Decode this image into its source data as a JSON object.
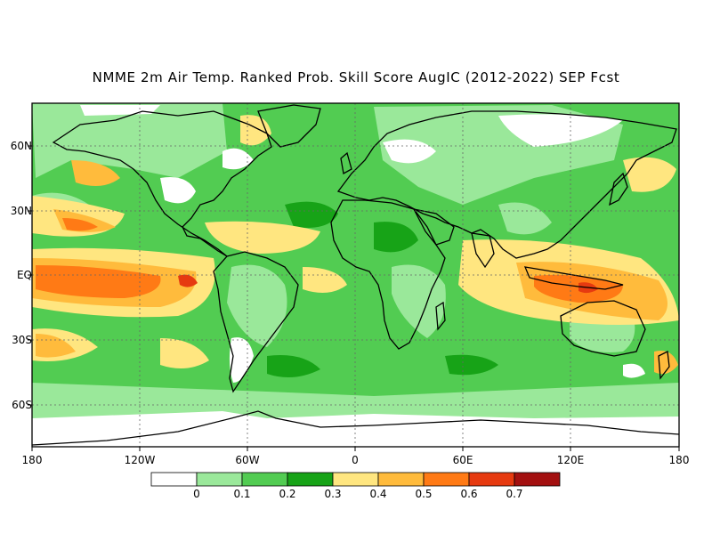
{
  "title": "NMME 2m Air Temp. Ranked Prob. Skill Score AugIC (2012-2022) SEP Fcst",
  "axes": {
    "lat_ticks": [
      "60N",
      "30N",
      "EQ",
      "30S",
      "60S"
    ],
    "lon_ticks": [
      "180",
      "120W",
      "60W",
      "0",
      "60E",
      "120E",
      "180"
    ]
  },
  "legend": {
    "labels": [
      "0",
      "0.1",
      "0.2",
      "0.3",
      "0.4",
      "0.5",
      "0.6",
      "0.7"
    ],
    "colors": [
      "#ffffff",
      "#9ae89a",
      "#52cc52",
      "#17a317",
      "#ffe680",
      "#ffbb3c",
      "#ff7a15",
      "#e63a10",
      "#a31010"
    ]
  },
  "colors": {
    "land_outline": "#000000",
    "ocean_default": "#52cc52"
  }
}
